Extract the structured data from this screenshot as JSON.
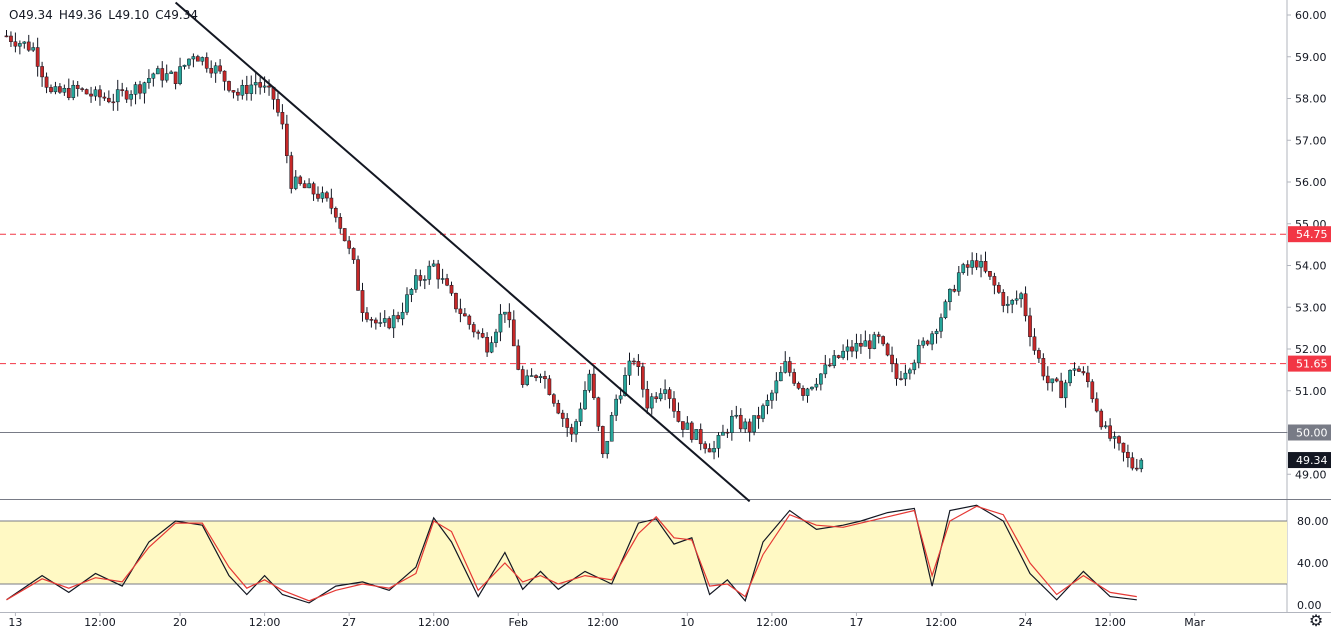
{
  "legend": {
    "open": "O49.34",
    "high": "H49.36",
    "low": "L49.10",
    "close": "C49.34"
  },
  "chart_data": {
    "type": "candlestick",
    "price_axis": {
      "min": 49.0,
      "max": 60.0,
      "ticks": [
        "60.00",
        "59.00",
        "58.00",
        "57.00",
        "56.00",
        "55.00",
        "54.00",
        "53.00",
        "52.00",
        "51.00",
        "50.00",
        "49.00"
      ]
    },
    "x_axis": {
      "ticks": [
        {
          "label": "13",
          "i": 2
        },
        {
          "label": "12:00",
          "i": 21
        },
        {
          "label": "20",
          "i": 39
        },
        {
          "label": "12:00",
          "i": 58
        },
        {
          "label": "27",
          "i": 77
        },
        {
          "label": "12:00",
          "i": 96
        },
        {
          "label": "Feb",
          "i": 115
        },
        {
          "label": "12:00",
          "i": 134
        },
        {
          "label": "10",
          "i": 153
        },
        {
          "label": "12:00",
          "i": 172
        },
        {
          "label": "17",
          "i": 191
        },
        {
          "label": "12:00",
          "i": 210
        },
        {
          "label": "24",
          "i": 229
        },
        {
          "label": "12:00",
          "i": 248
        },
        {
          "label": "Mar",
          "i": 267
        }
      ],
      "bar_count": 270
    },
    "price_labels": [
      {
        "value": "54.75",
        "price": 54.75,
        "color": "#f23645"
      },
      {
        "value": "51.65",
        "price": 51.65,
        "color": "#f23645"
      },
      {
        "value": "50.00",
        "price": 50.0,
        "color": "#787b86"
      },
      {
        "value": "49.34",
        "price": 49.34,
        "color": "#131722"
      }
    ],
    "horizontal_lines": [
      {
        "price": 54.75,
        "style": "dashed",
        "color": "#f23645"
      },
      {
        "price": 51.65,
        "style": "dashed",
        "color": "#f23645"
      },
      {
        "price": 50.0,
        "style": "solid",
        "color": "#787b86"
      }
    ],
    "trendline": {
      "from": {
        "i": 38,
        "price": 60.3
      },
      "to": {
        "i": 167,
        "price": 48.35
      },
      "color": "#131722"
    },
    "candle_colors": {
      "up": "#26a69a",
      "down": "#c62828"
    },
    "path": [
      [
        0,
        59.5
      ],
      [
        6,
        59.2
      ],
      [
        10,
        58.1
      ],
      [
        16,
        58.2
      ],
      [
        20,
        58.05
      ],
      [
        24,
        58.0
      ],
      [
        30,
        58.3
      ],
      [
        33,
        58.6
      ],
      [
        38,
        58.5
      ],
      [
        42,
        59.1
      ],
      [
        47,
        58.7
      ],
      [
        52,
        58.1
      ],
      [
        56,
        58.4
      ],
      [
        60,
        58.0
      ],
      [
        62,
        57.3
      ],
      [
        64,
        56.0
      ],
      [
        70,
        55.7
      ],
      [
        74,
        55.3
      ],
      [
        78,
        54.0
      ],
      [
        80,
        53.0
      ],
      [
        84,
        52.5
      ],
      [
        88,
        52.8
      ],
      [
        92,
        53.6
      ],
      [
        96,
        54.0
      ],
      [
        100,
        53.2
      ],
      [
        104,
        52.6
      ],
      [
        108,
        52.1
      ],
      [
        112,
        53.0
      ],
      [
        116,
        51.1
      ],
      [
        120,
        51.5
      ],
      [
        124,
        50.6
      ],
      [
        127,
        49.9
      ],
      [
        131,
        51.4
      ],
      [
        134,
        49.4
      ],
      [
        137,
        50.8
      ],
      [
        141,
        51.8
      ],
      [
        144,
        50.7
      ],
      [
        148,
        51.2
      ],
      [
        151,
        50.3
      ],
      [
        155,
        49.9
      ],
      [
        159,
        49.6
      ],
      [
        163,
        50.3
      ],
      [
        167,
        50.1
      ],
      [
        171,
        50.7
      ],
      [
        175,
        51.6
      ],
      [
        179,
        51.0
      ],
      [
        183,
        51.4
      ],
      [
        188,
        51.9
      ],
      [
        192,
        52.1
      ],
      [
        196,
        52.2
      ],
      [
        200,
        51.3
      ],
      [
        204,
        51.8
      ],
      [
        208,
        52.4
      ],
      [
        211,
        53.0
      ],
      [
        214,
        53.8
      ],
      [
        218,
        54.1
      ],
      [
        222,
        53.5
      ],
      [
        225,
        53.0
      ],
      [
        228,
        53.3
      ],
      [
        231,
        52.0
      ],
      [
        234,
        51.2
      ],
      [
        237,
        51.0
      ],
      [
        240,
        51.6
      ],
      [
        243,
        51.2
      ],
      [
        247,
        50.0
      ],
      [
        250,
        49.6
      ],
      [
        253,
        49.2
      ],
      [
        255,
        49.34
      ]
    ],
    "oscillator": {
      "axis": {
        "min": 0,
        "max": 100,
        "ticks": [
          "80.00",
          "40.00",
          "0.00"
        ]
      },
      "band": {
        "upper": 80,
        "lower": 20,
        "fill": "#fff9c4"
      },
      "series": [
        {
          "color": "#131722",
          "path": [
            [
              0,
              5
            ],
            [
              8,
              28
            ],
            [
              14,
              12
            ],
            [
              20,
              30
            ],
            [
              26,
              18
            ],
            [
              32,
              60
            ],
            [
              38,
              80
            ],
            [
              44,
              76
            ],
            [
              50,
              28
            ],
            [
              54,
              10
            ],
            [
              58,
              28
            ],
            [
              62,
              10
            ],
            [
              68,
              2
            ],
            [
              74,
              18
            ],
            [
              80,
              22
            ],
            [
              86,
              14
            ],
            [
              92,
              36
            ],
            [
              96,
              83
            ],
            [
              100,
              60
            ],
            [
              106,
              8
            ],
            [
              112,
              50
            ],
            [
              116,
              15
            ],
            [
              120,
              32
            ],
            [
              124,
              15
            ],
            [
              130,
              32
            ],
            [
              136,
              20
            ],
            [
              142,
              78
            ],
            [
              146,
              82
            ],
            [
              150,
              58
            ],
            [
              154,
              64
            ],
            [
              158,
              10
            ],
            [
              162,
              24
            ],
            [
              166,
              4
            ],
            [
              170,
              60
            ],
            [
              176,
              90
            ],
            [
              182,
              72
            ],
            [
              188,
              76
            ],
            [
              192,
              80
            ],
            [
              198,
              88
            ],
            [
              204,
              92
            ],
            [
              208,
              18
            ],
            [
              212,
              90
            ],
            [
              218,
              95
            ],
            [
              224,
              80
            ],
            [
              230,
              30
            ],
            [
              236,
              5
            ],
            [
              242,
              32
            ],
            [
              248,
              8
            ],
            [
              254,
              5
            ]
          ]
        },
        {
          "color": "#e53935",
          "path": [
            [
              0,
              5
            ],
            [
              8,
              25
            ],
            [
              14,
              16
            ],
            [
              20,
              26
            ],
            [
              26,
              22
            ],
            [
              32,
              55
            ],
            [
              38,
              78
            ],
            [
              44,
              78
            ],
            [
              50,
              36
            ],
            [
              54,
              16
            ],
            [
              58,
              24
            ],
            [
              62,
              14
            ],
            [
              68,
              4
            ],
            [
              74,
              14
            ],
            [
              80,
              20
            ],
            [
              86,
              16
            ],
            [
              92,
              30
            ],
            [
              96,
              80
            ],
            [
              100,
              70
            ],
            [
              106,
              14
            ],
            [
              112,
              40
            ],
            [
              116,
              22
            ],
            [
              120,
              28
            ],
            [
              124,
              20
            ],
            [
              130,
              28
            ],
            [
              136,
              24
            ],
            [
              142,
              68
            ],
            [
              146,
              84
            ],
            [
              150,
              64
            ],
            [
              154,
              62
            ],
            [
              158,
              18
            ],
            [
              162,
              20
            ],
            [
              166,
              8
            ],
            [
              170,
              48
            ],
            [
              176,
              86
            ],
            [
              182,
              76
            ],
            [
              188,
              74
            ],
            [
              192,
              78
            ],
            [
              198,
              84
            ],
            [
              204,
              90
            ],
            [
              208,
              28
            ],
            [
              212,
              80
            ],
            [
              218,
              94
            ],
            [
              224,
              86
            ],
            [
              230,
              40
            ],
            [
              236,
              10
            ],
            [
              242,
              28
            ],
            [
              248,
              12
            ],
            [
              254,
              8
            ]
          ]
        }
      ]
    }
  }
}
